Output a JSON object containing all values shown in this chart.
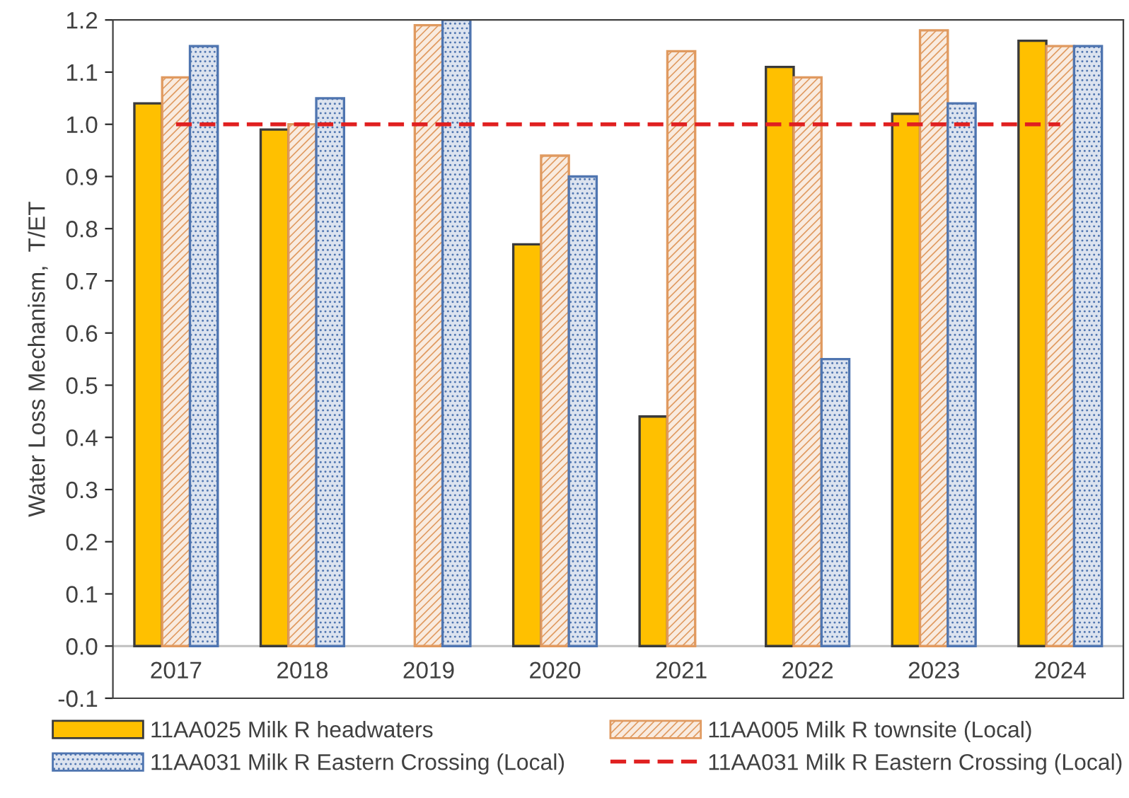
{
  "chart_data": {
    "type": "bar",
    "ylabel": "Water Loss Mechanism,  T/ET",
    "categories": [
      "2017",
      "2018",
      "2019",
      "2020",
      "2021",
      "2022",
      "2023",
      "2024"
    ],
    "series": [
      {
        "name": "11AA025 Milk R headwaters",
        "color": "#ffc000",
        "values": [
          1.04,
          0.99,
          null,
          0.77,
          0.44,
          1.11,
          1.02,
          1.16
        ]
      },
      {
        "name": "11AA005 Milk R townsite (Local)",
        "color": "#e09a60",
        "values": [
          1.09,
          1.0,
          1.19,
          0.94,
          1.14,
          1.09,
          1.18,
          1.15
        ]
      },
      {
        "name": "11AA031 Milk R Eastern Crossing (Local)",
        "color": "#4f75b0",
        "values": [
          1.15,
          1.05,
          1.2,
          0.9,
          null,
          0.55,
          1.04,
          1.15
        ]
      },
      {
        "name": "11AA031 Milk R Eastern Crossing (Local)",
        "type": "line",
        "color": "#e02020",
        "line_style": "dashed",
        "values": [
          1.0,
          1.0,
          1.0,
          1.0,
          1.0,
          1.0,
          1.0,
          1.0
        ]
      }
    ],
    "ylim": [
      -0.1,
      1.2
    ],
    "yticks": [
      {
        "value": -0.1,
        "label": "-0.1"
      },
      {
        "value": 0.0,
        "label": "0.0"
      },
      0.1,
      0.2,
      0.3,
      0.4,
      0.5,
      0.6,
      0.7,
      0.8,
      0.9,
      {
        "value": 1.0,
        "label": "1.0"
      },
      1.1,
      1.2
    ],
    "grid": false,
    "legend": "bottom",
    "marker": "none"
  }
}
